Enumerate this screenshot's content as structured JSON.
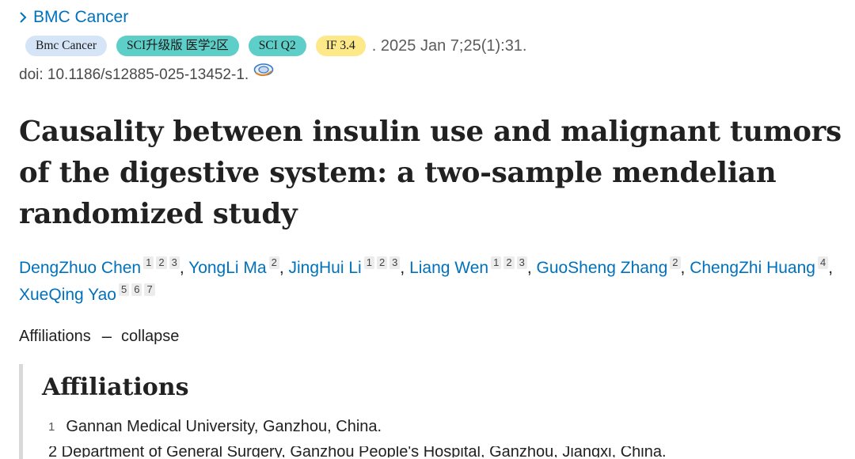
{
  "journal": {
    "label": "BMC Cancer"
  },
  "badges": {
    "journal": "Bmc Cancer",
    "sci_upgrade": "SCI升级版 医学2区",
    "sci_quartile": "SCI Q2",
    "impact_factor": "IF 3.4"
  },
  "citation": ". 2025 Jan 7;25(1):31.",
  "doi": "doi: 10.1186/s12885-025-13452-1.",
  "title": "Causality between insulin use and malignant tumors of the digestive system: a two-sample mendelian randomized study",
  "authors": [
    {
      "name": "DengZhuo Chen",
      "affils": [
        "1",
        "2",
        "3"
      ]
    },
    {
      "name": "YongLi Ma",
      "affils": [
        "2"
      ]
    },
    {
      "name": "JingHui Li",
      "affils": [
        "1",
        "2",
        "3"
      ]
    },
    {
      "name": "Liang Wen",
      "affils": [
        "1",
        "2",
        "3"
      ]
    },
    {
      "name": "GuoSheng Zhang",
      "affils": [
        "2"
      ]
    },
    {
      "name": "ChengZhi Huang",
      "affils": [
        "4"
      ]
    },
    {
      "name": "XueQing Yao",
      "affils": [
        "5",
        "6",
        "7"
      ]
    }
  ],
  "affiliations_toggle": {
    "label": "Affiliations",
    "dash": "–",
    "action": "collapse"
  },
  "affiliations": {
    "heading": "Affiliations",
    "items": [
      {
        "num": "1",
        "text": "Gannan Medical University, Ganzhou, China."
      }
    ],
    "cut_line": "2  Department of General Surgery, Ganzhou People's Hospital, Ganzhou, Jiangxi, China."
  },
  "colors": {
    "link": "#0071bc",
    "journal_badge": "#d5e5f7",
    "sci_badge": "#5ecfc8",
    "if_badge": "#fde88a"
  }
}
